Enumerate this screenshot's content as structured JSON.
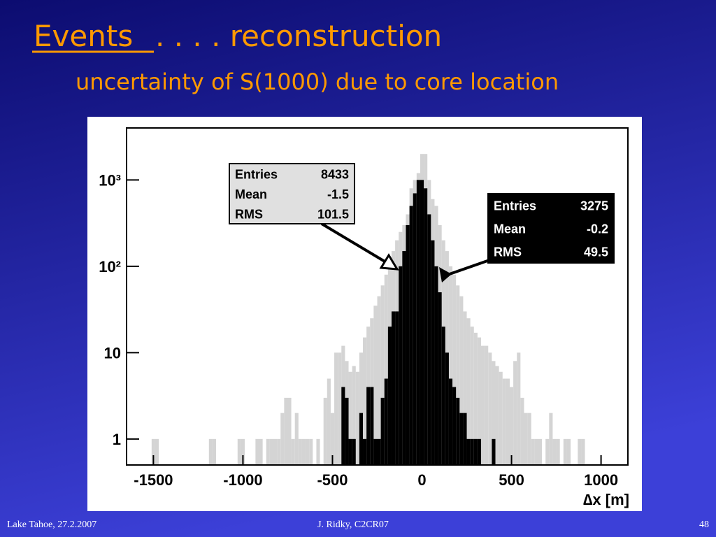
{
  "slide": {
    "title_main": "Events",
    "title_rest": ". . . . reconstruction",
    "subtitle": "uncertainty of S(1000) due to core location",
    "footer_left": "Lake Tahoe, 27.2.2007",
    "footer_center": "J. Ridky, C2CR07",
    "footer_right": 48
  },
  "chart_data": {
    "type": "histogram",
    "xlabel": "∆x [m]",
    "log_y": true,
    "xlim": [
      -1650,
      1150
    ],
    "ylim": [
      0.5,
      4000
    ],
    "xticks": [
      -1500,
      -1000,
      -500,
      0,
      500,
      1000
    ],
    "yticks": [
      1,
      10,
      {
        "value": 100,
        "label": "10²"
      },
      {
        "value": 1000,
        "label": "10³"
      }
    ],
    "bins": [
      -1650,
      -1630,
      -1610,
      -1590,
      -1570,
      -1550,
      -1530,
      -1510,
      -1490,
      -1470,
      -1450,
      -1430,
      -1410,
      -1390,
      -1370,
      -1350,
      -1330,
      -1310,
      -1290,
      -1270,
      -1250,
      -1230,
      -1210,
      -1190,
      -1170,
      -1150,
      -1130,
      -1110,
      -1090,
      -1070,
      -1050,
      -1030,
      -1010,
      -990,
      -970,
      -950,
      -930,
      -910,
      -890,
      -870,
      -850,
      -830,
      -810,
      -790,
      -770,
      -750,
      -730,
      -710,
      -690,
      -670,
      -650,
      -630,
      -610,
      -590,
      -570,
      -550,
      -530,
      -510,
      -490,
      -470,
      -450,
      -430,
      -410,
      -390,
      -370,
      -350,
      -330,
      -310,
      -290,
      -270,
      -250,
      -230,
      -210,
      -190,
      -170,
      -150,
      -130,
      -110,
      -90,
      -70,
      -50,
      -30,
      -10,
      10,
      30,
      50,
      70,
      90,
      110,
      130,
      150,
      170,
      190,
      210,
      230,
      250,
      270,
      290,
      310,
      330,
      350,
      370,
      390,
      410,
      430,
      450,
      470,
      490,
      510,
      530,
      550,
      570,
      590,
      610,
      630,
      650,
      670,
      690,
      710,
      730,
      750,
      770,
      790,
      810,
      830,
      850,
      870,
      890,
      910,
      930,
      950,
      970,
      990,
      1010,
      1030,
      1050,
      1070,
      1090,
      1110,
      1130,
      1150
    ],
    "series": [
      {
        "color": "#d4d4d4",
        "values": [
          0,
          0,
          0,
          0,
          0,
          0,
          0,
          1,
          1,
          0,
          0,
          0,
          0,
          0,
          0,
          0,
          0,
          0,
          0,
          0,
          0,
          0,
          0,
          1,
          1,
          0,
          0,
          0,
          0,
          0,
          0,
          1,
          1,
          0,
          0,
          0,
          1,
          1,
          0,
          1,
          1,
          1,
          1,
          2,
          3,
          3,
          1,
          2,
          1,
          1,
          1,
          1,
          0,
          1,
          0,
          3,
          5,
          2,
          10,
          10,
          12,
          8,
          6,
          7,
          6,
          10,
          15,
          20,
          25,
          35,
          45,
          60,
          80,
          100,
          150,
          200,
          250,
          300,
          400,
          800,
          1000,
          1200,
          2000,
          2000,
          1000,
          600,
          500,
          300,
          200,
          150,
          100,
          80,
          60,
          45,
          30,
          25,
          20,
          17,
          15,
          12,
          12,
          10,
          8,
          7,
          6,
          5,
          5,
          4,
          8,
          10,
          3,
          2,
          2,
          1,
          1,
          1,
          0,
          1,
          2,
          1,
          1,
          0,
          1,
          1,
          0,
          0,
          1,
          1,
          0,
          0,
          0,
          0,
          0,
          0,
          0,
          0,
          0,
          0,
          0,
          0
        ]
      },
      {
        "color": "#000000",
        "values": [
          0,
          0,
          0,
          0,
          0,
          0,
          0,
          0,
          0,
          0,
          0,
          0,
          0,
          0,
          0,
          0,
          0,
          0,
          0,
          0,
          0,
          0,
          0,
          0,
          0,
          0,
          0,
          0,
          0,
          0,
          0,
          0,
          0,
          0,
          0,
          0,
          0,
          0,
          0,
          0,
          0,
          0,
          0,
          0,
          0,
          0,
          0,
          0,
          0,
          0,
          0,
          0,
          0,
          0,
          0,
          0,
          0,
          0,
          0,
          0,
          4,
          3,
          1,
          1,
          0,
          2,
          1,
          4,
          4,
          1,
          1,
          3,
          5,
          20,
          30,
          30,
          100,
          150,
          300,
          500,
          700,
          1000,
          1000,
          800,
          400,
          200,
          100,
          50,
          20,
          10,
          5,
          4,
          3,
          2,
          2,
          1,
          1,
          1,
          1,
          0,
          0,
          0,
          1,
          0,
          0,
          0,
          0,
          0,
          0,
          0,
          0,
          0,
          0,
          0,
          0,
          0,
          0,
          0,
          0,
          0,
          0,
          0,
          0,
          0,
          0,
          0,
          0,
          0,
          0,
          0,
          0,
          0,
          0,
          0,
          0,
          0,
          0,
          0,
          0,
          0
        ]
      }
    ],
    "stat_boxes": [
      {
        "labels": [
          "Entries",
          "Mean",
          "RMS"
        ],
        "values": [
          8433,
          -1.5,
          101.5
        ]
      },
      {
        "labels": [
          "Entries",
          "Mean",
          "RMS"
        ],
        "values": [
          3275,
          -0.2,
          49.5
        ]
      }
    ]
  }
}
